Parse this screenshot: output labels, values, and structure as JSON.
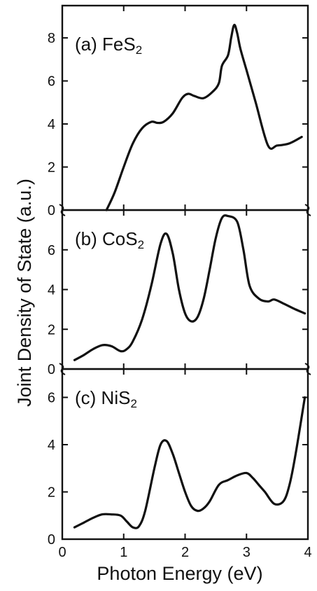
{
  "chart_data": {
    "type": "line",
    "ylabel": "Joint Density of State (a.u.)",
    "xlabel": "Photon Energy (eV)",
    "x_range": [
      0,
      4
    ],
    "x_ticks": [
      "0",
      "1",
      "2",
      "3",
      "4"
    ],
    "shared_x_axis": true,
    "grid": false,
    "panels": [
      {
        "label_prefix": "(a) FeS",
        "label_sub": "2",
        "ylim": [
          0,
          9.5
        ],
        "y_ticks": [
          "0",
          "2",
          "4",
          "6",
          "8"
        ],
        "series": [
          {
            "x": [
              0.72,
              0.85,
              1.0,
              1.15,
              1.3,
              1.45,
              1.55,
              1.65,
              1.8,
              1.95,
              2.05,
              2.15,
              2.3,
              2.45,
              2.55,
              2.6,
              2.7,
              2.75,
              2.8,
              2.85,
              2.9,
              3.0,
              3.15,
              3.35,
              3.5,
              3.7,
              3.9
            ],
            "y": [
              0.0,
              0.8,
              2.0,
              3.1,
              3.8,
              4.1,
              4.05,
              4.1,
              4.5,
              5.2,
              5.4,
              5.3,
              5.2,
              5.5,
              5.9,
              6.7,
              7.2,
              8.0,
              8.6,
              8.2,
              7.5,
              6.5,
              5.0,
              3.0,
              3.0,
              3.1,
              3.4
            ]
          }
        ]
      },
      {
        "label_prefix": "(b) CoS",
        "label_sub": "2",
        "ylim": [
          0,
          8.0
        ],
        "y_ticks": [
          "0",
          "2",
          "4",
          "6"
        ],
        "series": [
          {
            "x": [
              0.2,
              0.35,
              0.5,
              0.65,
              0.8,
              0.95,
              1.05,
              1.15,
              1.3,
              1.45,
              1.6,
              1.7,
              1.8,
              1.9,
              2.0,
              2.1,
              2.2,
              2.3,
              2.4,
              2.5,
              2.6,
              2.7,
              2.85,
              2.95,
              3.05,
              3.2,
              3.35,
              3.45,
              3.6,
              3.8,
              3.95
            ],
            "y": [
              0.45,
              0.7,
              1.0,
              1.2,
              1.15,
              0.9,
              1.0,
              1.4,
              2.5,
              4.2,
              6.3,
              6.8,
              5.8,
              4.0,
              2.8,
              2.4,
              2.6,
              3.5,
              5.0,
              6.6,
              7.6,
              7.7,
              7.4,
              6.0,
              4.2,
              3.55,
              3.4,
              3.5,
              3.3,
              3.0,
              2.8
            ]
          }
        ]
      },
      {
        "label_prefix": "(c) NiS",
        "label_sub": "2",
        "ylim": [
          0,
          7.2
        ],
        "y_ticks": [
          "0",
          "2",
          "4",
          "6"
        ],
        "series": [
          {
            "x": [
              0.2,
              0.35,
              0.5,
              0.65,
              0.8,
              0.95,
              1.05,
              1.15,
              1.25,
              1.35,
              1.5,
              1.6,
              1.7,
              1.8,
              1.9,
              2.0,
              2.1,
              2.2,
              2.3,
              2.4,
              2.55,
              2.7,
              2.85,
              3.0,
              3.1,
              3.2,
              3.3,
              3.45,
              3.6,
              3.7,
              3.8,
              3.95
            ],
            "y": [
              0.5,
              0.7,
              0.9,
              1.05,
              1.05,
              1.0,
              0.75,
              0.5,
              0.55,
              1.2,
              3.0,
              4.0,
              4.15,
              3.6,
              2.8,
              2.0,
              1.4,
              1.2,
              1.3,
              1.6,
              2.3,
              2.5,
              2.7,
              2.8,
              2.6,
              2.3,
              2.0,
              1.5,
              1.6,
              2.3,
              3.6,
              6.0
            ]
          }
        ]
      }
    ]
  }
}
